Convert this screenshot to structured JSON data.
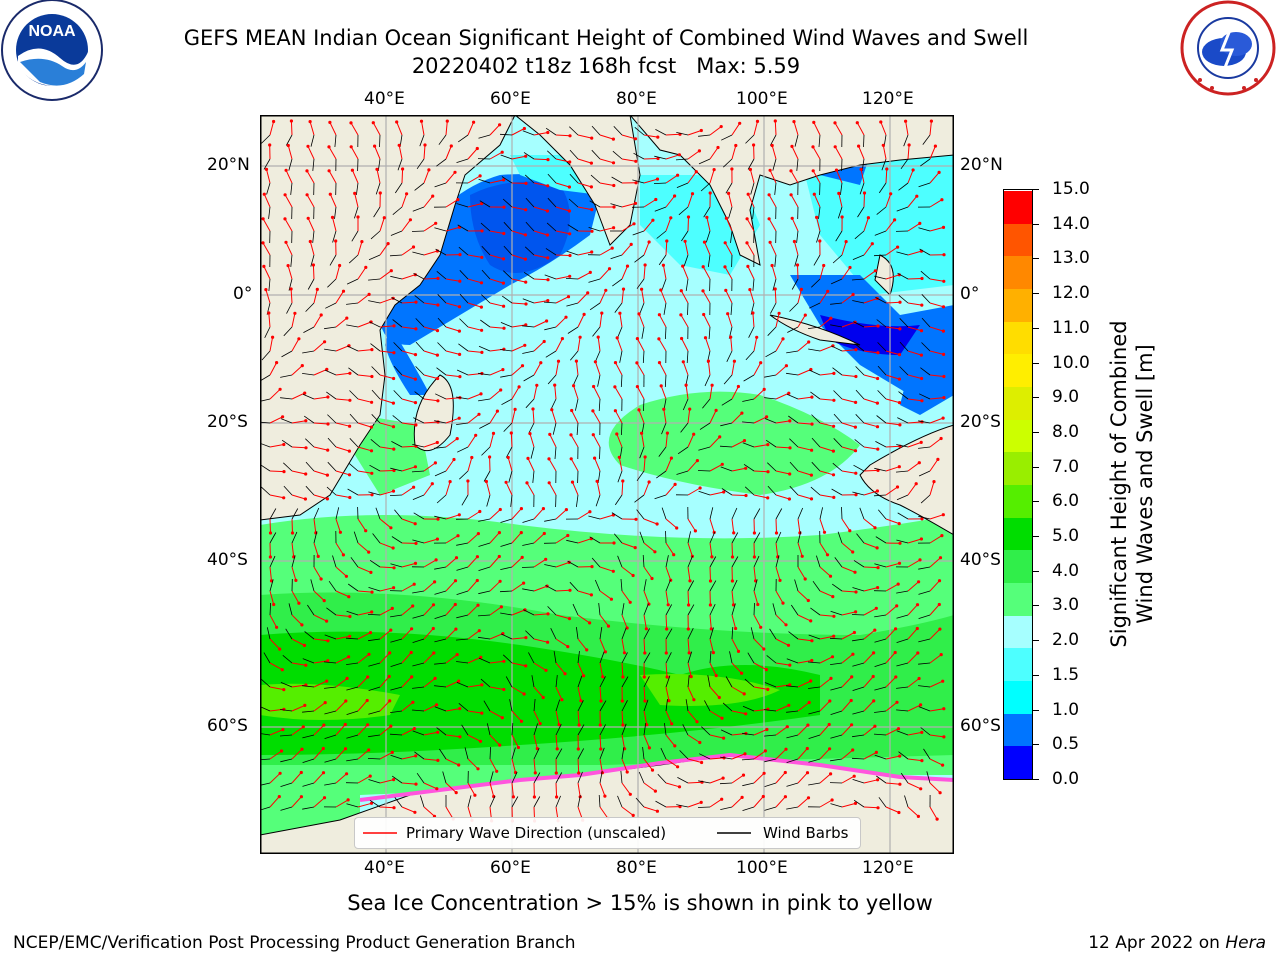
{
  "header": {
    "title_line1": "GEFS MEAN Indian Ocean Significant Height of Combined Wind Waves and Swell",
    "title_line2": "20220402 t18z 168h fcst   Max: 5.59"
  },
  "logos": {
    "left": {
      "name": "noaa-logo",
      "text": "NOAA",
      "ring_text": "NATIONAL OCEANIC AND ATMOSPHERIC ADMINISTRATION · U.S. DEPARTMENT OF COMMERCE"
    },
    "right": {
      "name": "nws-logo",
      "ring_text": "NATIONAL WEATHER SERVICE"
    }
  },
  "map": {
    "lon_ticks": [
      "40°E",
      "60°E",
      "80°E",
      "100°E",
      "120°E"
    ],
    "lat_ticks": [
      "20°N",
      "0°",
      "20°S",
      "40°S",
      "60°S"
    ],
    "lon_range": [
      21,
      129
    ],
    "lat_range": [
      -72,
      28
    ],
    "colors": {
      "land": "#efedde",
      "ice": "#ff55dd",
      "grid": "#b0b0b0"
    }
  },
  "colorbar": {
    "title_line1": "Significant Height of Combined",
    "title_line2": "Wind Waves and Swell [m]",
    "labels": [
      "15.0",
      "14.0",
      "13.0",
      "12.0",
      "11.0",
      "10.0",
      "9.0",
      "8.0",
      "7.0",
      "6.0",
      "5.0",
      "4.0",
      "3.0",
      "2.0",
      "1.5",
      "1.0",
      "0.5",
      "0.0"
    ],
    "colors_bottom_to_top": [
      "#0000ff",
      "#0075ff",
      "#00ffff",
      "#4dffff",
      "#a6ffff",
      "#55ff7a",
      "#30ee4a",
      "#00dd00",
      "#55ee00",
      "#99ee00",
      "#ccff00",
      "#ddee00",
      "#ffee00",
      "#ffdd00",
      "#ffb000",
      "#ff8800",
      "#ff5500",
      "#ff0000"
    ]
  },
  "legend": {
    "wave_label": "Primary Wave Direction (unscaled)",
    "barb_label": "Wind Barbs",
    "wave_color": "#ff0000",
    "barb_color": "#000000"
  },
  "footer": {
    "ice_note": "Sea Ice Concentration > 15% is shown in pink to yellow",
    "left": "NCEP/EMC/Verification Post Processing Product Generation Branch",
    "right_date": "12 Apr 2022 on ",
    "right_host": "Hera"
  }
}
